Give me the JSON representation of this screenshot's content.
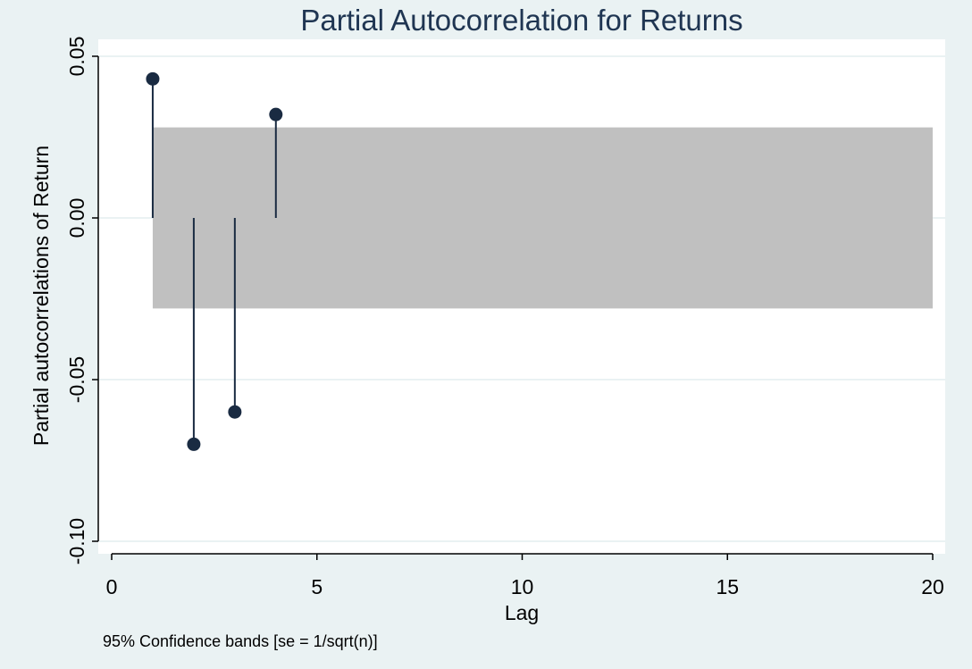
{
  "colors": {
    "background": "#eaf2f3",
    "plot_background": "#ffffff",
    "confidence_band": "#c0c0c0",
    "marker": "#1a2b42",
    "title": "#1f3552",
    "axis": "#000000",
    "gridline": "#eaf2f3"
  },
  "chart_data": {
    "type": "scatter",
    "subtype": "pacf-stem",
    "title": "Partial Autocorrelation for Returns",
    "xlabel": "Lag",
    "ylabel": "Partial autocorrelations of Return",
    "note": "95% Confidence bands [se = 1/sqrt(n)]",
    "xlim": [
      0,
      20
    ],
    "ylim": [
      -0.1,
      0.05
    ],
    "xticks": [
      0,
      5,
      10,
      15,
      20
    ],
    "xtick_labels": [
      "0",
      "5",
      "10",
      "15",
      "20"
    ],
    "yticks": [
      -0.1,
      -0.05,
      0,
      0.05
    ],
    "ytick_labels": [
      "-0.10",
      "-0.05",
      "0.00",
      "0.05"
    ],
    "grid": true,
    "series": [
      {
        "x": [
          1,
          2,
          3,
          4
        ],
        "values": [
          0.043,
          -0.07,
          -0.06,
          0.032
        ]
      }
    ],
    "confidence_band": {
      "x_range": [
        1,
        20
      ],
      "upper": 0.028,
      "lower": -0.028
    }
  }
}
